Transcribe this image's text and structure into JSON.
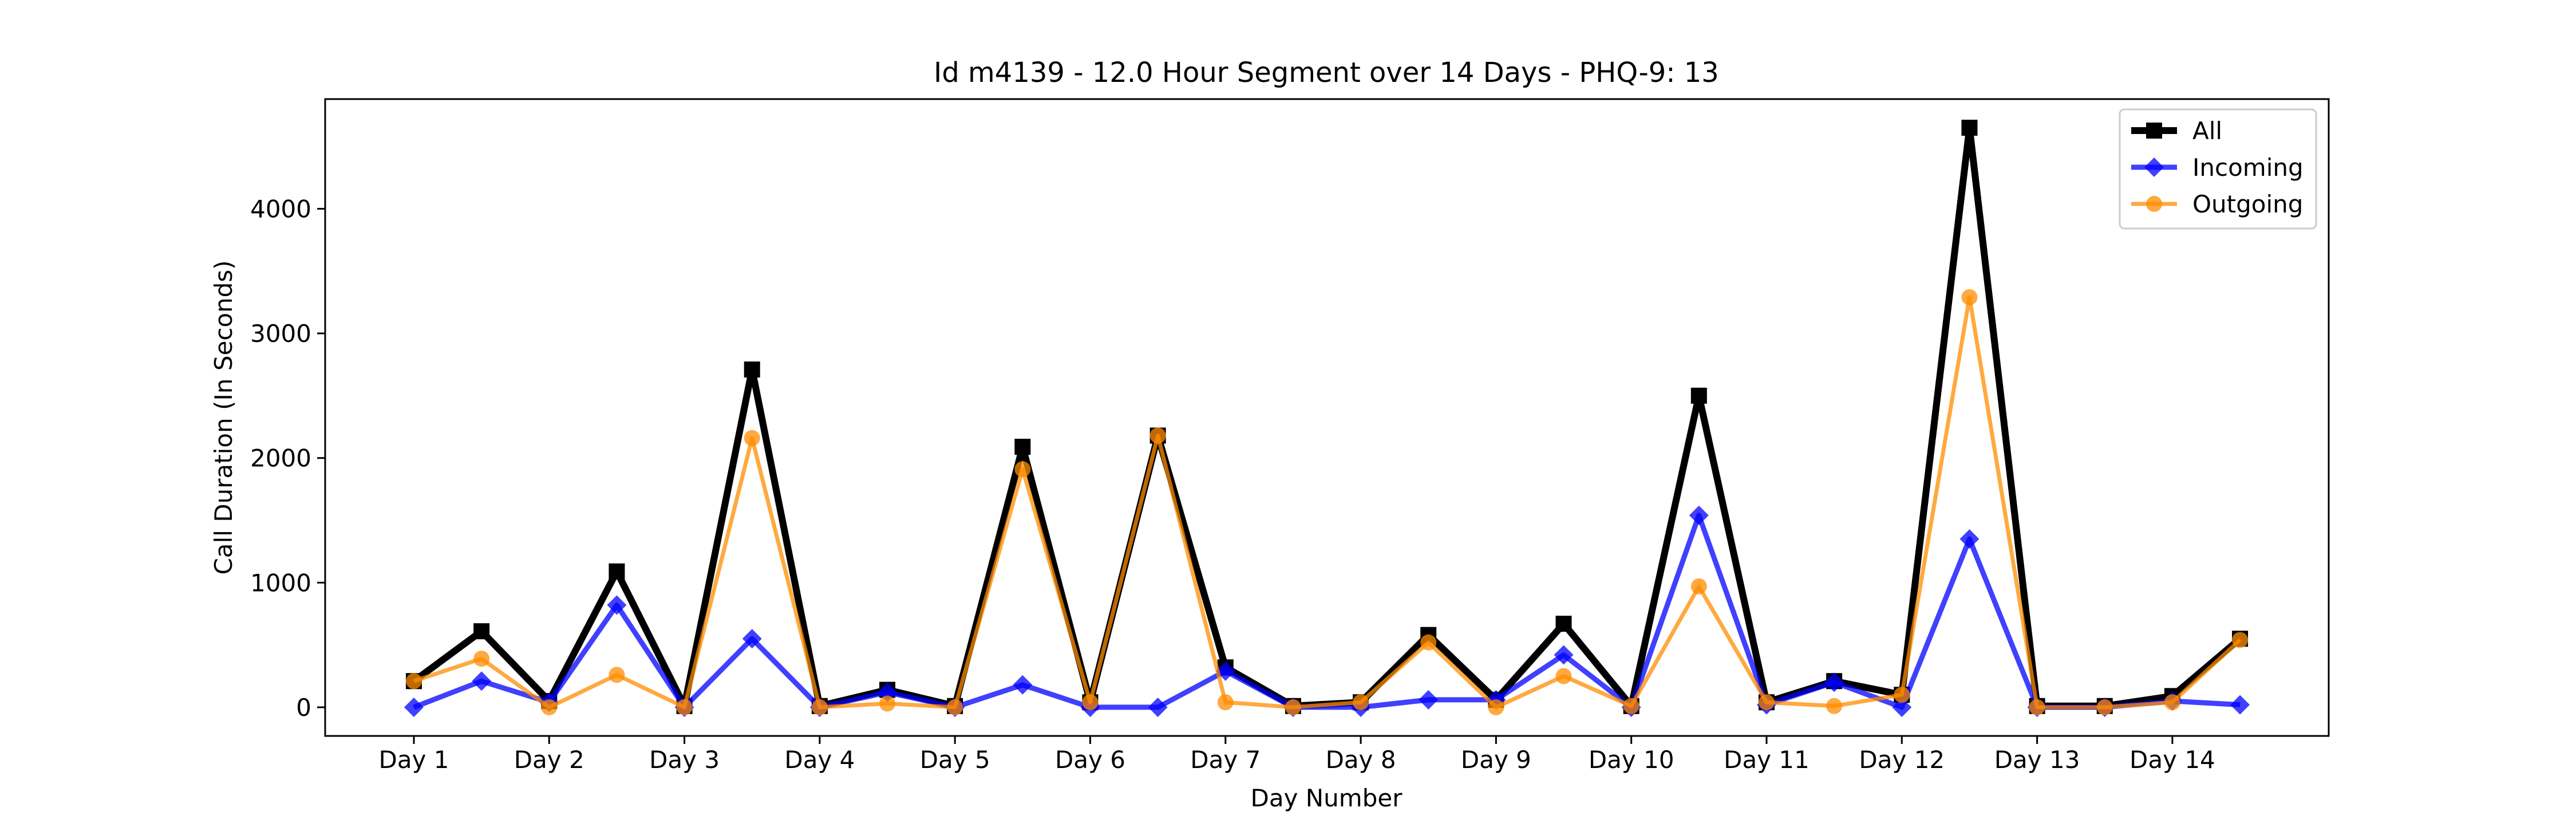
{
  "chart_data": {
    "type": "line",
    "title": "Id m4139 - 12.0 Hour Segment over 14 Days - PHQ-9: 13",
    "xlabel": "Day Number",
    "ylabel": "Call Duration (In Seconds)",
    "tick_labels": [
      "Day 1",
      "Day 2",
      "Day 3",
      "Day 4",
      "Day 5",
      "Day 6",
      "Day 7",
      "Day 8",
      "Day 9",
      "Day 10",
      "Day 11",
      "Day 12",
      "Day 13",
      "Day 14"
    ],
    "y_ticks": [
      0,
      1000,
      2000,
      3000,
      4000
    ],
    "ylim": [
      -230,
      4880
    ],
    "grid": false,
    "legend_position": "top-right",
    "series": [
      {
        "name": "All",
        "color": "#000000",
        "marker": "square",
        "values": [
          210,
          610,
          50,
          1090,
          10,
          2710,
          10,
          140,
          10,
          2090,
          40,
          2180,
          320,
          10,
          40,
          580,
          60,
          670,
          10,
          2500,
          40,
          210,
          100,
          4650,
          10,
          10,
          90,
          550
        ]
      },
      {
        "name": "Incoming",
        "color": "#0000ff",
        "marker": "diamond",
        "values": [
          0,
          210,
          40,
          820,
          0,
          550,
          0,
          120,
          0,
          180,
          0,
          0,
          290,
          0,
          0,
          60,
          60,
          420,
          0,
          1540,
          20,
          200,
          0,
          1350,
          0,
          0,
          50,
          20
        ]
      },
      {
        "name": "Outgoing",
        "color": "#ff8c00",
        "marker": "circle",
        "values": [
          210,
          390,
          0,
          260,
          0,
          2160,
          0,
          30,
          0,
          1910,
          40,
          2180,
          40,
          0,
          40,
          520,
          0,
          250,
          10,
          970,
          40,
          10,
          100,
          3290,
          0,
          0,
          40,
          540
        ]
      }
    ]
  }
}
